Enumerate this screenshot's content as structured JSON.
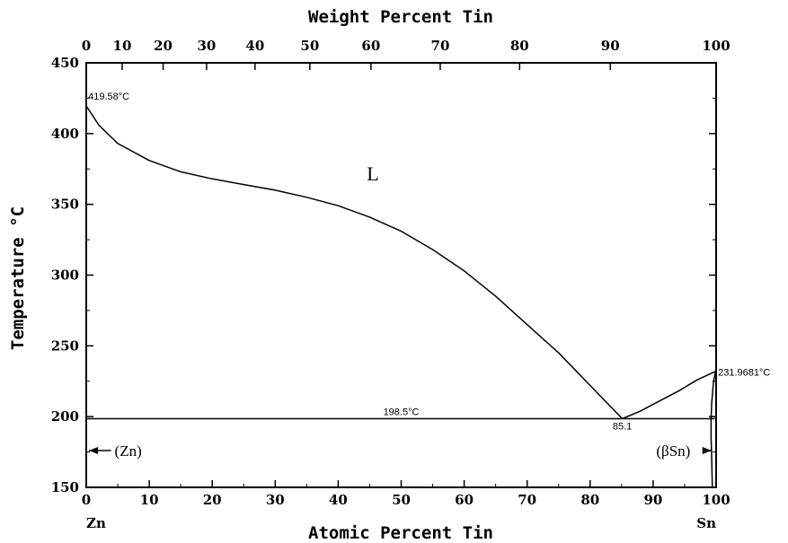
{
  "chart_data": {
    "type": "line",
    "title": "",
    "top_axis_title": "Weight Percent Tin",
    "xlabel": "Atomic Percent Tin",
    "ylabel": "Temperature °C",
    "xlim": [
      0,
      100
    ],
    "ylim": [
      150,
      450
    ],
    "x_ticks": [
      0,
      10,
      20,
      30,
      40,
      50,
      60,
      70,
      80,
      90,
      100
    ],
    "y_ticks": [
      150,
      200,
      250,
      300,
      350,
      400,
      450
    ],
    "top_ticks": [
      {
        "label": "0",
        "at": 0
      },
      {
        "label": "10",
        "at": 5.7
      },
      {
        "label": "20",
        "at": 12.2
      },
      {
        "label": "30",
        "at": 19.1
      },
      {
        "label": "40",
        "at": 26.8
      },
      {
        "label": "50",
        "at": 35.5
      },
      {
        "label": "60",
        "at": 45.2
      },
      {
        "label": "70",
        "at": 56.2
      },
      {
        "label": "80",
        "at": 68.8
      },
      {
        "label": "90",
        "at": 83.2
      },
      {
        "label": "100",
        "at": 100
      }
    ],
    "element_labels": {
      "left": "Zn",
      "right": "Sn"
    },
    "series": [
      {
        "name": "",
        "points": [
          [
            0,
            419.58
          ],
          [
            2,
            406
          ],
          [
            5,
            393
          ],
          [
            10,
            381
          ],
          [
            15,
            373
          ],
          [
            20,
            368
          ],
          [
            25,
            364
          ],
          [
            30,
            360
          ],
          [
            35,
            355
          ],
          [
            40,
            349
          ],
          [
            45,
            341
          ],
          [
            50,
            331
          ],
          [
            55,
            318
          ],
          [
            60,
            303
          ],
          [
            65,
            285
          ],
          [
            70,
            265
          ],
          [
            75,
            245
          ],
          [
            80,
            222
          ],
          [
            85.1,
            198.5
          ]
        ]
      },
      {
        "name": "",
        "points": [
          [
            85.1,
            198.5
          ],
          [
            88,
            204
          ],
          [
            91,
            211
          ],
          [
            94,
            218
          ],
          [
            97,
            226
          ],
          [
            99.9,
            231.9681
          ]
        ]
      },
      {
        "name": "",
        "points": [
          [
            0,
            198.5
          ],
          [
            99.8,
            198.5
          ]
        ]
      },
      {
        "name": "",
        "points": [
          [
            99.9,
            231.9681
          ],
          [
            99.6,
            225
          ],
          [
            99.3,
            210
          ],
          [
            99.2,
            198.5
          ],
          [
            99.2,
            185
          ],
          [
            99.3,
            170
          ],
          [
            99.4,
            150
          ]
        ]
      },
      {
        "name": "",
        "points": [
          [
            100,
            231.9681
          ],
          [
            100,
            150
          ]
        ]
      }
    ],
    "annotations": [
      {
        "text": "419.58°C",
        "x": 0.3,
        "y": 424
      },
      {
        "text": "198.5°C",
        "x": 50,
        "y": 201
      },
      {
        "text": "85.1",
        "x": 85.1,
        "y": 191
      },
      {
        "text": "231.9681°C",
        "x": 100.3,
        "y": 229
      },
      {
        "text": "L",
        "x": 45.5,
        "y": 367
      }
    ],
    "phase_labels": [
      {
        "text": "(Zn)",
        "arrow": "left",
        "x": 4.5,
        "y": 176
      },
      {
        "text": "(βSn)",
        "arrow": "right",
        "x": 90.5,
        "y": 176
      }
    ]
  }
}
